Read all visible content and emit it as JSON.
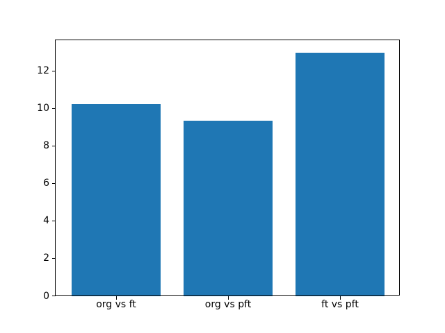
{
  "figure": {
    "background": "#ffffff"
  },
  "chart_data": {
    "type": "bar",
    "categories": [
      "org vs ft",
      "org vs pft",
      "ft vs pft"
    ],
    "values": [
      10.25,
      9.35,
      13.0
    ],
    "title": "",
    "xlabel": "",
    "ylabel": "",
    "ylim": [
      0,
      13.65
    ],
    "xlim": [
      -0.54,
      2.54
    ],
    "yticks": [
      0,
      2,
      4,
      6,
      8,
      10,
      12
    ],
    "bar_width": 0.8,
    "bar_color": "#1f77b4",
    "axis_color": "#000000",
    "tick_label_color": "#000000",
    "grid": false,
    "legend_position": "none"
  }
}
